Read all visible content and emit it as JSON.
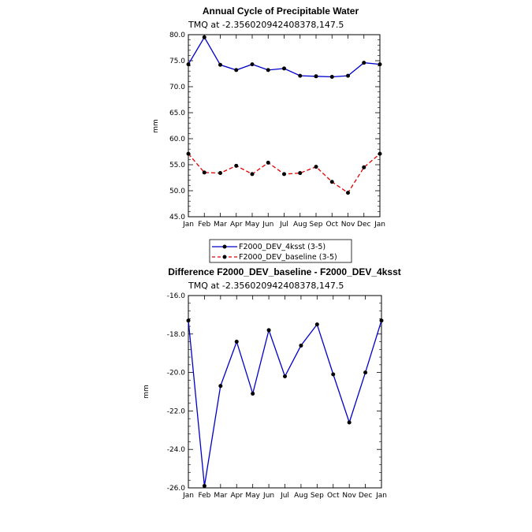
{
  "chart_data": [
    {
      "type": "line",
      "title": "Annual Cycle of Precipitable Water",
      "subtitle": "TMQ at -2.356020942408378,147.5",
      "xlabel": "",
      "ylabel": "mm",
      "categories": [
        "Jan",
        "Feb",
        "Mar",
        "Apr",
        "May",
        "Jun",
        "Jul",
        "Aug",
        "Sep",
        "Oct",
        "Nov",
        "Dec",
        "Jan"
      ],
      "ylim": [
        45.0,
        80.0
      ],
      "yticks": [
        "45.0",
        "50.0",
        "55.0",
        "60.0",
        "65.0",
        "70.0",
        "75.0",
        "80.0"
      ],
      "grid": false,
      "legend_position": "bottom",
      "series": [
        {
          "name": "F2000_DEV_4ksst (3-5)",
          "color": "#0000cc",
          "dash": "solid",
          "values": [
            74.3,
            79.5,
            74.2,
            73.2,
            74.3,
            73.2,
            73.5,
            72.1,
            72.0,
            71.9,
            72.1,
            74.6,
            74.3
          ]
        },
        {
          "name": "F2000_DEV_baseline (3-5)",
          "color": "#e00000",
          "dash": "dashed",
          "values": [
            57.1,
            53.5,
            53.4,
            54.8,
            53.2,
            55.4,
            53.2,
            53.4,
            54.6,
            51.7,
            49.6,
            54.5,
            57.1
          ]
        }
      ]
    },
    {
      "type": "line",
      "title": "Difference F2000_DEV_baseline - F2000_DEV_4ksst",
      "subtitle": "TMQ at -2.356020942408378,147.5",
      "xlabel": "",
      "ylabel": "mm",
      "categories": [
        "Jan",
        "Feb",
        "Mar",
        "Apr",
        "May",
        "Jun",
        "Jul",
        "Aug",
        "Sep",
        "Oct",
        "Nov",
        "Dec",
        "Jan"
      ],
      "ylim": [
        -26.0,
        -16.0
      ],
      "yticks": [
        "-26.0",
        "-24.0",
        "-22.0",
        "-20.0",
        "-18.0",
        "-16.0"
      ],
      "grid": false,
      "series": [
        {
          "color": "#0000cc",
          "dash": "solid",
          "values": [
            -17.3,
            -25.9,
            -20.7,
            -18.4,
            -21.1,
            -17.8,
            -20.2,
            -18.6,
            -17.5,
            -20.1,
            -22.6,
            -20.0,
            -17.3
          ]
        }
      ]
    }
  ]
}
